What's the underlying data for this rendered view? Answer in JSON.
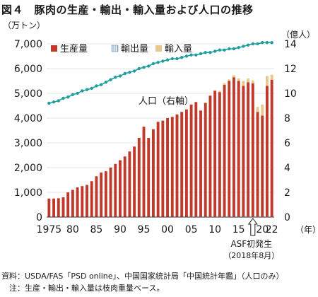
{
  "figure": {
    "title": "図４　豚肉の生産・輸出・輸入量および人口の推移",
    "source": "資料：USDA/FAS「PSD online」、中国国家統計局「中国統計年鑑」（人口のみ）",
    "note": "　注：生産・輸出・輸入量は枝肉重量ベース。"
  },
  "chart_data": {
    "type": "bar",
    "y_unit": "（万トン）",
    "y2_unit": "（億人）",
    "x_unit": "（年）",
    "ylim": [
      0,
      7000
    ],
    "y2lim": [
      0,
      14
    ],
    "yticks": [
      "0",
      "1,000",
      "2,000",
      "3,000",
      "4,000",
      "5,000",
      "6,000",
      "7,000"
    ],
    "y2ticks": [
      "0",
      "2",
      "4",
      "6",
      "8",
      "10",
      "12",
      "14"
    ],
    "xtick_labels": [
      "1975",
      "80",
      "85",
      "90",
      "95",
      "00",
      "05",
      "10",
      "15",
      "20",
      "22"
    ],
    "xtick_years": [
      1975,
      1980,
      1985,
      1990,
      1995,
      2000,
      2005,
      2010,
      2015,
      2020,
      2022
    ],
    "years": [
      1975,
      1976,
      1977,
      1978,
      1979,
      1980,
      1981,
      1982,
      1983,
      1984,
      1985,
      1986,
      1987,
      1988,
      1989,
      1990,
      1991,
      1992,
      1993,
      1994,
      1995,
      1996,
      1997,
      1998,
      1999,
      2000,
      2001,
      2002,
      2003,
      2004,
      2005,
      2006,
      2007,
      2008,
      2009,
      2010,
      2011,
      2012,
      2013,
      2014,
      2015,
      2016,
      2017,
      2018,
      2019,
      2020,
      2021,
      2022
    ],
    "series": [
      {
        "name": "生産量",
        "kind": "bar",
        "color": "#c0392b",
        "values": [
          750,
          750,
          760,
          800,
          1000,
          1100,
          1200,
          1250,
          1300,
          1450,
          1650,
          1800,
          1850,
          2000,
          2150,
          2300,
          2450,
          2650,
          2850,
          3200,
          3650,
          3200,
          3550,
          3850,
          3900,
          4000,
          4050,
          4150,
          4250,
          4350,
          4550,
          4650,
          4300,
          4600,
          4900,
          5100,
          5050,
          5350,
          5500,
          5650,
          5500,
          5300,
          5450,
          5400,
          4250,
          4100,
          5300,
          5550
        ]
      },
      {
        "name": "輸出量",
        "kind": "bar",
        "color": "#a9bcd0",
        "pattern": "vertical-stripes",
        "values": [
          10,
          10,
          10,
          10,
          10,
          10,
          10,
          10,
          10,
          10,
          10,
          10,
          10,
          10,
          10,
          10,
          10,
          10,
          10,
          10,
          10,
          10,
          10,
          10,
          10,
          10,
          10,
          10,
          10,
          10,
          20,
          20,
          20,
          20,
          20,
          20,
          20,
          20,
          20,
          20,
          20,
          20,
          20,
          20,
          20,
          20,
          20,
          20
        ]
      },
      {
        "name": "輸入量",
        "kind": "bar",
        "color": "#e6c98c",
        "values": [
          0,
          0,
          0,
          0,
          0,
          0,
          0,
          0,
          0,
          0,
          0,
          0,
          0,
          0,
          0,
          0,
          0,
          0,
          0,
          0,
          0,
          0,
          0,
          0,
          0,
          0,
          0,
          0,
          0,
          0,
          0,
          10,
          20,
          50,
          20,
          30,
          50,
          60,
          60,
          80,
          100,
          200,
          150,
          120,
          200,
          450,
          400,
          200
        ]
      },
      {
        "name": "人口（右軸）",
        "kind": "line",
        "axis": "right",
        "color": "#1f9e9e",
        "values": [
          9.2,
          9.3,
          9.4,
          9.6,
          9.7,
          9.9,
          10.0,
          10.2,
          10.3,
          10.4,
          10.6,
          10.7,
          10.9,
          11.1,
          11.3,
          11.4,
          11.6,
          11.7,
          11.8,
          12.0,
          12.1,
          12.2,
          12.4,
          12.5,
          12.6,
          12.7,
          12.8,
          12.8,
          12.9,
          13.0,
          13.1,
          13.1,
          13.2,
          13.3,
          13.3,
          13.4,
          13.5,
          13.5,
          13.6,
          13.6,
          13.7,
          13.8,
          13.9,
          14.0,
          14.0,
          14.1,
          14.1,
          14.1
        ]
      }
    ],
    "legend": [
      "生産量",
      "輸出量",
      "輸入量"
    ],
    "annotations": {
      "population_label": "人口（右軸）",
      "asf_label_1": "ASF初発生",
      "asf_label_2": "（2018年8月）",
      "asf_year": 2018
    }
  }
}
